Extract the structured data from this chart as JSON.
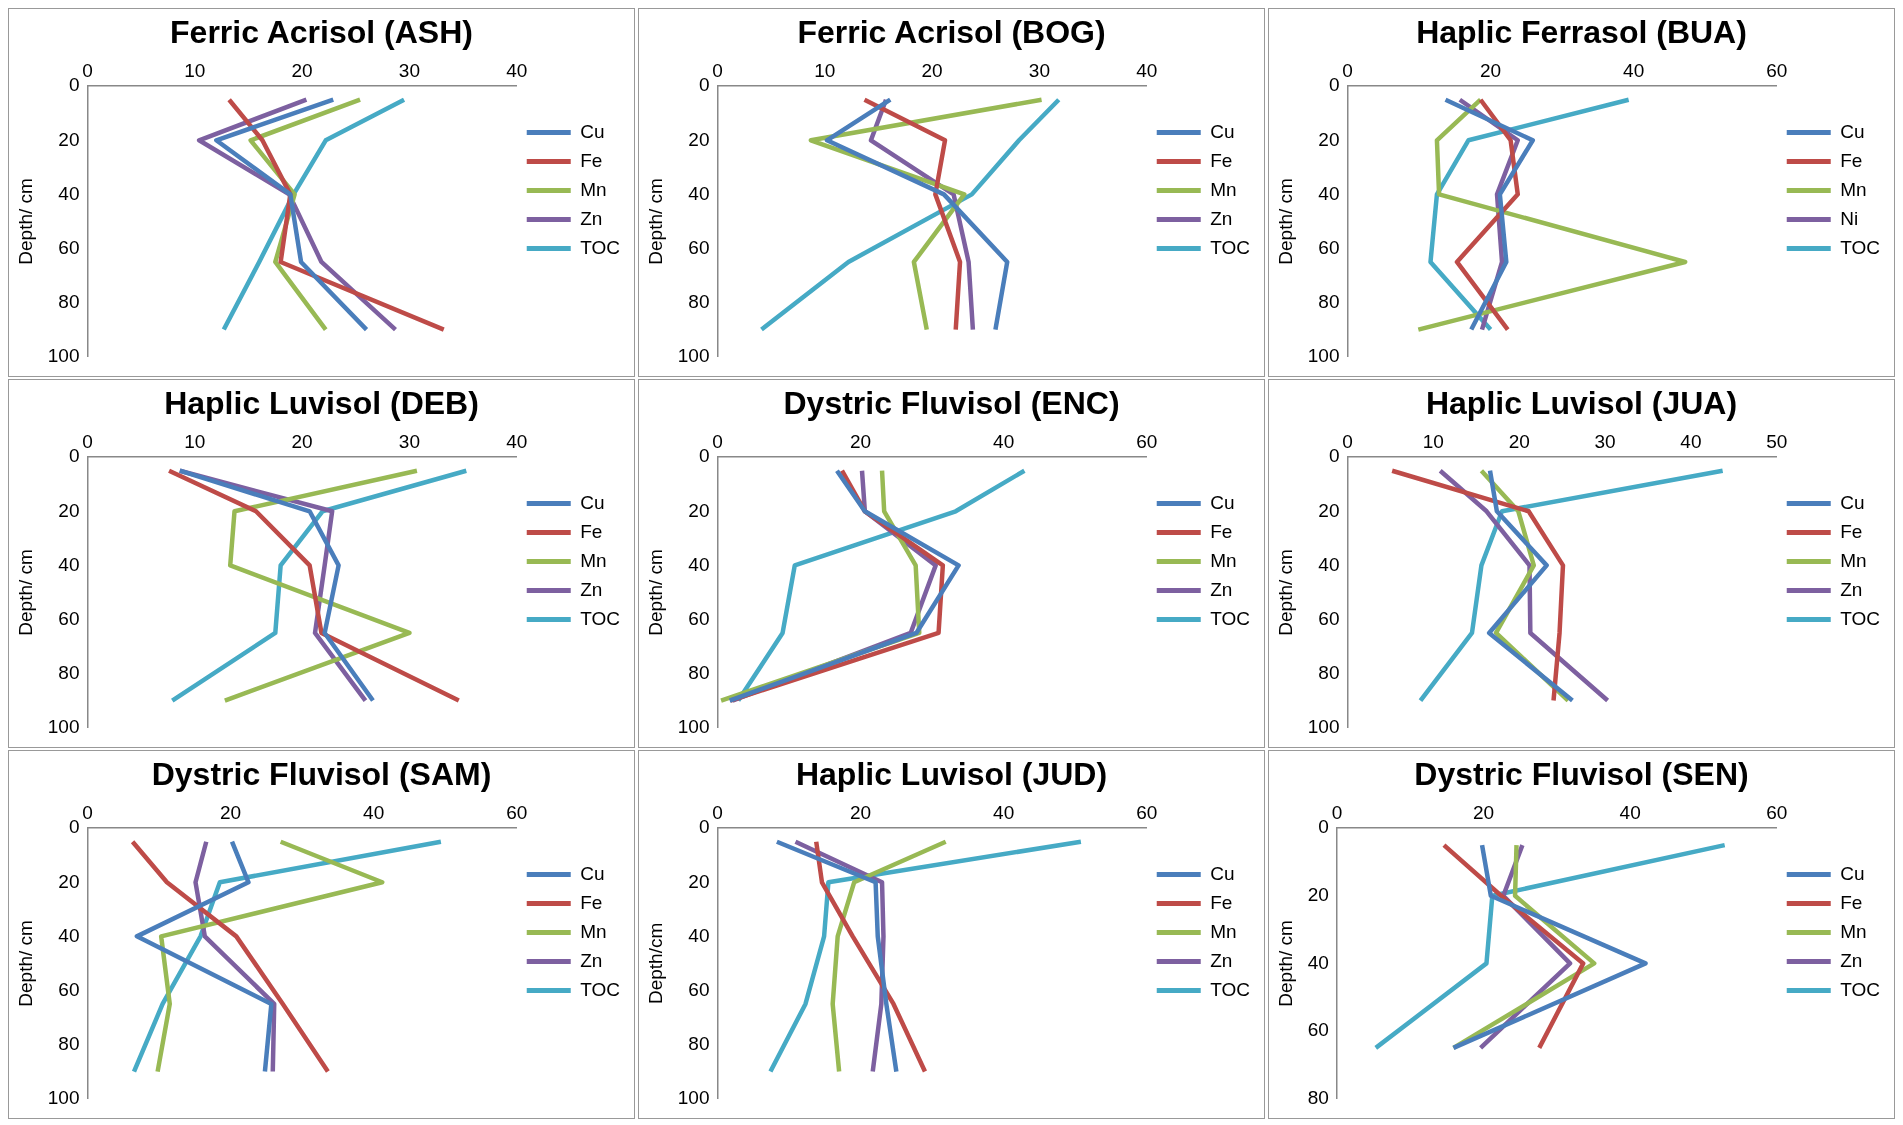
{
  "chart_data": [
    {
      "type": "line",
      "title": "Ferric Acrisol (ASH)",
      "ylabel": "Depth/ cm",
      "xlim": [
        0,
        40
      ],
      "xticks": [
        0,
        10,
        20,
        30,
        40
      ],
      "ylim": [
        100,
        0
      ],
      "yticks": [
        0,
        20,
        40,
        60,
        80,
        100
      ],
      "grid": false,
      "legend": "right",
      "marker": "none",
      "series": [
        {
          "name": "Cu",
          "color": "#4a7ebb",
          "x": [
            22.9,
            12.0,
            18.9,
            19.9,
            26.0
          ],
          "values": [
            5,
            20,
            40,
            65,
            90
          ]
        },
        {
          "name": "Fe",
          "color": "#be4b48",
          "x": [
            13.2,
            16.3,
            18.9,
            18.0,
            33.2
          ],
          "values": [
            5,
            20,
            40,
            65,
            90
          ]
        },
        {
          "name": "Mn",
          "color": "#98b954",
          "x": [
            25.4,
            15.2,
            19.3,
            17.5,
            22.2
          ],
          "values": [
            5,
            20,
            40,
            65,
            90
          ]
        },
        {
          "name": "Zn",
          "color": "#7d60a0",
          "x": [
            20.4,
            10.4,
            18.8,
            21.8,
            28.7
          ],
          "values": [
            5,
            20,
            40,
            65,
            90
          ]
        },
        {
          "name": "TOC",
          "color": "#46aac5",
          "x": [
            29.5,
            22.2,
            19.2,
            16.0,
            12.7
          ],
          "values": [
            5,
            20,
            40,
            65,
            90
          ]
        }
      ]
    },
    {
      "type": "line",
      "title": "Ferric Acrisol (BOG)",
      "ylabel": "Depth/ cm",
      "xlim": [
        0,
        40
      ],
      "xticks": [
        0,
        10,
        20,
        30,
        40
      ],
      "ylim": [
        100,
        0
      ],
      "yticks": [
        0,
        20,
        40,
        60,
        80,
        100
      ],
      "grid": false,
      "legend": "right",
      "marker": "none",
      "series": [
        {
          "name": "Cu",
          "color": "#4a7ebb",
          "x": [
            16.1,
            10.2,
            21.1,
            27.0,
            25.9
          ],
          "values": [
            5,
            20,
            40,
            65,
            90
          ]
        },
        {
          "name": "Fe",
          "color": "#be4b48",
          "x": [
            13.7,
            21.2,
            20.3,
            22.6,
            22.2
          ],
          "values": [
            5,
            20,
            40,
            65,
            90
          ]
        },
        {
          "name": "Mn",
          "color": "#98b954",
          "x": [
            30.2,
            8.7,
            23.0,
            18.3,
            19.5
          ],
          "values": [
            5,
            20,
            40,
            65,
            90
          ]
        },
        {
          "name": "Zn",
          "color": "#7d60a0",
          "x": [
            15.7,
            14.3,
            22.0,
            23.4,
            23.8
          ],
          "values": [
            5,
            20,
            40,
            65,
            90
          ]
        },
        {
          "name": "TOC",
          "color": "#46aac5",
          "x": [
            31.8,
            28.1,
            23.7,
            12.2,
            4.1
          ],
          "values": [
            5,
            20,
            40,
            65,
            90
          ]
        }
      ]
    },
    {
      "type": "line",
      "title": "Haplic Ferrasol (BUA)",
      "ylabel": "Depth/ cm",
      "xlim": [
        0,
        60
      ],
      "xticks": [
        0,
        20,
        40,
        60
      ],
      "ylim": [
        100,
        0
      ],
      "yticks": [
        0,
        20,
        40,
        60,
        80,
        100
      ],
      "grid": false,
      "legend": "right",
      "marker": "none",
      "series": [
        {
          "name": "Cu",
          "color": "#4a7ebb",
          "x": [
            13.7,
            25.9,
            21.3,
            22.2,
            17.3
          ],
          "values": [
            5,
            20,
            40,
            65,
            90
          ]
        },
        {
          "name": "Fe",
          "color": "#be4b48",
          "x": [
            18.6,
            22.8,
            23.8,
            15.3,
            22.4
          ],
          "values": [
            5,
            20,
            40,
            65,
            90
          ]
        },
        {
          "name": "Mn",
          "color": "#98b954",
          "x": [
            18.6,
            12.5,
            12.8,
            47.2,
            9.9
          ],
          "values": [
            5,
            20,
            40,
            65,
            90
          ]
        },
        {
          "name": "Ni",
          "color": "#7d60a0",
          "x": [
            15.7,
            23.8,
            20.9,
            21.6,
            18.8
          ],
          "values": [
            5,
            20,
            40,
            65,
            90
          ]
        },
        {
          "name": "TOC",
          "color": "#46aac5",
          "x": [
            39.3,
            16.9,
            12.5,
            11.6,
            20.0
          ],
          "values": [
            5,
            20,
            40,
            65,
            90
          ]
        }
      ]
    },
    {
      "type": "line",
      "title": "Haplic Luvisol (DEB)",
      "ylabel": "Depth/ cm",
      "xlim": [
        0,
        40
      ],
      "xticks": [
        0,
        10,
        20,
        30,
        40
      ],
      "ylim": [
        100,
        0
      ],
      "yticks": [
        0,
        20,
        40,
        60,
        80,
        100
      ],
      "grid": false,
      "legend": "right",
      "marker": "none",
      "series": [
        {
          "name": "Cu",
          "color": "#4a7ebb",
          "x": [
            8.6,
            20.7,
            23.4,
            22.1,
            26.6
          ],
          "values": [
            5,
            20,
            40,
            65,
            90
          ]
        },
        {
          "name": "Fe",
          "color": "#be4b48",
          "x": [
            7.6,
            15.7,
            20.7,
            21.8,
            34.6
          ],
          "values": [
            5,
            20,
            40,
            65,
            90
          ]
        },
        {
          "name": "Mn",
          "color": "#98b954",
          "x": [
            30.7,
            13.7,
            13.3,
            30.0,
            12.8
          ],
          "values": [
            5,
            20,
            40,
            65,
            90
          ]
        },
        {
          "name": "Zn",
          "color": "#7d60a0",
          "x": [
            8.6,
            22.8,
            22.1,
            21.2,
            25.9
          ],
          "values": [
            5,
            20,
            40,
            65,
            90
          ]
        },
        {
          "name": "TOC",
          "color": "#46aac5",
          "x": [
            35.3,
            21.9,
            18.0,
            17.5,
            7.9
          ],
          "values": [
            5,
            20,
            40,
            65,
            90
          ]
        }
      ]
    },
    {
      "type": "line",
      "title": "Dystric Fluvisol (ENC)",
      "ylabel": "Depth/ cm",
      "xlim": [
        0,
        60
      ],
      "xticks": [
        0,
        20,
        40,
        60
      ],
      "ylim": [
        100,
        0
      ],
      "yticks": [
        0,
        20,
        40,
        60,
        80,
        100
      ],
      "grid": false,
      "legend": "right",
      "marker": "none",
      "series": [
        {
          "name": "Cu",
          "color": "#4a7ebb",
          "x": [
            16.7,
            20.6,
            33.7,
            27.8,
            1.7
          ],
          "values": [
            5,
            20,
            40,
            65,
            90
          ]
        },
        {
          "name": "Fe",
          "color": "#be4b48",
          "x": [
            17.4,
            20.6,
            31.5,
            30.9,
            1.8
          ],
          "values": [
            5,
            20,
            40,
            65,
            90
          ]
        },
        {
          "name": "Mn",
          "color": "#98b954",
          "x": [
            23.0,
            23.3,
            27.7,
            28.2,
            0.5
          ],
          "values": [
            5,
            20,
            40,
            65,
            90
          ]
        },
        {
          "name": "Zn",
          "color": "#7d60a0",
          "x": [
            20.2,
            20.6,
            30.5,
            27.0,
            2.1
          ],
          "values": [
            5,
            20,
            40,
            65,
            90
          ]
        },
        {
          "name": "TOC",
          "color": "#46aac5",
          "x": [
            42.9,
            33.3,
            10.8,
            9.1,
            2.9
          ],
          "values": [
            5,
            20,
            40,
            65,
            90
          ]
        }
      ]
    },
    {
      "type": "line",
      "title": "Haplic Luvisol (JUA)",
      "ylabel": "Depth/ cm",
      "xlim": [
        0,
        50
      ],
      "xticks": [
        0,
        10,
        20,
        30,
        40,
        50
      ],
      "ylim": [
        100,
        0
      ],
      "yticks": [
        0,
        20,
        40,
        60,
        80,
        100
      ],
      "grid": false,
      "legend": "right",
      "marker": "none",
      "series": [
        {
          "name": "Cu",
          "color": "#4a7ebb",
          "x": [
            16.6,
            17.4,
            23.2,
            16.5,
            26.2
          ],
          "values": [
            5,
            20,
            40,
            65,
            90
          ]
        },
        {
          "name": "Fe",
          "color": "#be4b48",
          "x": [
            5.2,
            21.1,
            25.1,
            24.7,
            24.0
          ],
          "values": [
            5,
            20,
            40,
            65,
            90
          ]
        },
        {
          "name": "Mn",
          "color": "#98b954",
          "x": [
            15.6,
            19.9,
            21.7,
            17.3,
            25.7
          ],
          "values": [
            5,
            20,
            40,
            65,
            90
          ]
        },
        {
          "name": "Zn",
          "color": "#7d60a0",
          "x": [
            10.8,
            16.2,
            21.2,
            21.3,
            30.3
          ],
          "values": [
            5,
            20,
            40,
            65,
            90
          ]
        },
        {
          "name": "TOC",
          "color": "#46aac5",
          "x": [
            43.7,
            18.0,
            15.6,
            14.5,
            8.5
          ],
          "values": [
            5,
            20,
            40,
            65,
            90
          ]
        }
      ]
    },
    {
      "type": "line",
      "title": "Dystric Fluvisol (SAM)",
      "ylabel": "Depth/ cm",
      "xlim": [
        0,
        60
      ],
      "xticks": [
        0,
        20,
        40,
        60
      ],
      "ylim": [
        100,
        0
      ],
      "yticks": [
        0,
        20,
        40,
        60,
        80,
        100
      ],
      "grid": false,
      "legend": "right",
      "marker": "none",
      "series": [
        {
          "name": "Cu",
          "color": "#4a7ebb",
          "x": [
            20.2,
            22.5,
            6.9,
            25.7,
            24.8
          ],
          "values": [
            5,
            20,
            40,
            65,
            90
          ]
        },
        {
          "name": "Fe",
          "color": "#be4b48",
          "x": [
            6.3,
            11.1,
            20.8,
            27.3,
            33.6
          ],
          "values": [
            5,
            20,
            40,
            65,
            90
          ]
        },
        {
          "name": "Mn",
          "color": "#98b954",
          "x": [
            27.0,
            41.2,
            10.3,
            11.5,
            9.8
          ],
          "values": [
            5,
            20,
            40,
            65,
            90
          ]
        },
        {
          "name": "Zn",
          "color": "#7d60a0",
          "x": [
            16.6,
            15.1,
            16.4,
            26.1,
            25.9
          ],
          "values": [
            5,
            20,
            40,
            65,
            90
          ]
        },
        {
          "name": "TOC",
          "color": "#46aac5",
          "x": [
            49.4,
            18.5,
            15.8,
            10.5,
            6.5
          ],
          "values": [
            5,
            20,
            40,
            65,
            90
          ]
        }
      ]
    },
    {
      "type": "line",
      "title": "Haplic Luvisol (JUD)",
      "ylabel": "Depth/cm",
      "xlim": [
        0,
        60
      ],
      "xticks": [
        0,
        20,
        40,
        60
      ],
      "ylim": [
        100,
        0
      ],
      "yticks": [
        0,
        20,
        40,
        60,
        80,
        100
      ],
      "grid": false,
      "legend": "right",
      "marker": "none",
      "series": [
        {
          "name": "Cu",
          "color": "#4a7ebb",
          "x": [
            8.3,
            22.1,
            22.4,
            23.6,
            25.0
          ],
          "values": [
            5,
            20,
            40,
            65,
            90
          ]
        },
        {
          "name": "Fe",
          "color": "#be4b48",
          "x": [
            13.8,
            14.6,
            18.9,
            24.6,
            29.0
          ],
          "values": [
            5,
            20,
            40,
            65,
            90
          ]
        },
        {
          "name": "Mn",
          "color": "#98b954",
          "x": [
            31.9,
            19.1,
            16.8,
            16.1,
            17.0
          ],
          "values": [
            5,
            20,
            40,
            65,
            90
          ]
        },
        {
          "name": "Zn",
          "color": "#7d60a0",
          "x": [
            10.9,
            23.0,
            23.2,
            22.9,
            21.7
          ],
          "values": [
            5,
            20,
            40,
            65,
            90
          ]
        },
        {
          "name": "TOC",
          "color": "#46aac5",
          "x": [
            50.8,
            15.5,
            14.9,
            12.3,
            7.4
          ],
          "values": [
            5,
            20,
            40,
            65,
            90
          ]
        }
      ]
    },
    {
      "type": "line",
      "title": "Dystric Fluvisol (SEN)",
      "ylabel": "Depth/ cm",
      "xlim": [
        0,
        60
      ],
      "xticks": [
        0,
        20,
        40,
        60
      ],
      "ylim": [
        80,
        0
      ],
      "yticks": [
        0,
        20,
        40,
        60,
        80
      ],
      "grid": false,
      "legend": "right",
      "marker": "none",
      "series": [
        {
          "name": "Cu",
          "color": "#4a7ebb",
          "x": [
            19.8,
            21.0,
            42.1,
            15.9
          ],
          "values": [
            5,
            20,
            40,
            65
          ]
        },
        {
          "name": "Fe",
          "color": "#be4b48",
          "x": [
            14.6,
            22.4,
            33.6,
            27.6
          ],
          "values": [
            5,
            20,
            40,
            65
          ]
        },
        {
          "name": "Mn",
          "color": "#98b954",
          "x": [
            24.5,
            24.3,
            35.1,
            15.9
          ],
          "values": [
            5,
            20,
            40,
            65
          ]
        },
        {
          "name": "Zn",
          "color": "#7d60a0",
          "x": [
            25.3,
            22.7,
            31.8,
            19.6
          ],
          "values": [
            5,
            20,
            40,
            65
          ]
        },
        {
          "name": "TOC",
          "color": "#46aac5",
          "x": [
            52.9,
            21.2,
            20.4,
            5.3
          ],
          "values": [
            5,
            20,
            40,
            65
          ]
        }
      ]
    }
  ]
}
